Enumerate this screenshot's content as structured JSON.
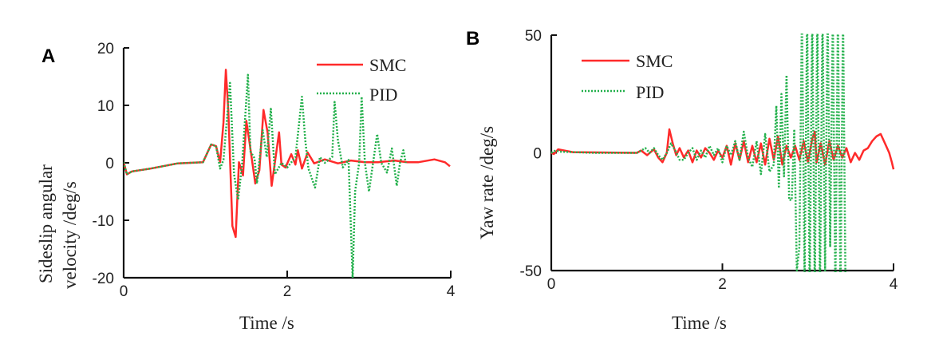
{
  "chart_data": [
    {
      "type": "line",
      "panel_label": "A",
      "title": "",
      "xlabel": "Time /s",
      "ylabel_lines": [
        "Sideslip angular",
        "velocity /deg/s"
      ],
      "xlim": [
        0,
        4
      ],
      "ylim": [
        -20,
        20
      ],
      "xticks": [
        "0",
        "2",
        "4"
      ],
      "yticks": [
        "20",
        "10",
        "0",
        "-10",
        "-20"
      ],
      "xtick_values": [
        0,
        2,
        4
      ],
      "ytick_values": [
        20,
        10,
        0,
        -10,
        -20
      ],
      "legend_position": "top-right",
      "series": [
        {
          "name": "SMC",
          "color": "#ff2a2a",
          "style": "solid",
          "x": [
            0,
            0.04,
            0.1,
            0.33,
            0.66,
            0.97,
            1.07,
            1.13,
            1.18,
            1.22,
            1.25,
            1.28,
            1.33,
            1.37,
            1.41,
            1.46,
            1.5,
            1.54,
            1.61,
            1.66,
            1.71,
            1.76,
            1.81,
            1.9,
            1.93,
            1.98,
            2.05,
            2.1,
            2.13,
            2.18,
            2.25,
            2.33,
            2.46,
            2.62,
            2.78,
            2.95,
            3.11,
            3.31,
            3.47,
            3.6,
            3.8,
            3.93,
            3.99
          ],
          "y": [
            0.1,
            -2,
            -1.5,
            -1,
            -0.1,
            0.1,
            3.2,
            2.9,
            0.1,
            7,
            16.2,
            9,
            -11,
            -12.9,
            0.1,
            -2.2,
            7.3,
            3.4,
            -3.6,
            -1.3,
            9.2,
            5.3,
            -4,
            5.3,
            -0.3,
            -0.8,
            1.5,
            -0.3,
            2.2,
            -1,
            1.8,
            -0.1,
            0.6,
            -0.1,
            0.4,
            0.1,
            0.1,
            0.4,
            0.1,
            0.1,
            0.6,
            0.1,
            -0.6
          ]
        },
        {
          "name": "PID",
          "color": "#22b04b",
          "style": "dotted",
          "x": [
            0,
            0.04,
            0.1,
            0.33,
            0.66,
            0.97,
            1.07,
            1.13,
            1.18,
            1.22,
            1.3,
            1.35,
            1.4,
            1.45,
            1.52,
            1.55,
            1.6,
            1.63,
            1.7,
            1.75,
            1.8,
            1.85,
            1.93,
            2.0,
            2.1,
            2.18,
            2.22,
            2.26,
            2.34,
            2.4,
            2.46,
            2.55,
            2.58,
            2.62,
            2.68,
            2.75,
            2.8,
            2.83,
            2.88,
            2.91,
            2.95,
            3.0,
            3.05,
            3.1,
            3.15,
            3.22,
            3.28,
            3.34,
            3.38,
            3.42,
            3.45
          ],
          "y": [
            0.1,
            -2,
            -1.5,
            -1,
            -0.1,
            0.1,
            3.2,
            2.9,
            -1,
            0.5,
            13.9,
            -2,
            -6.4,
            0,
            15.3,
            2,
            0.8,
            -3.6,
            5.7,
            1,
            9.4,
            -2,
            0,
            -0.8,
            1,
            11.5,
            4,
            -1,
            -4.3,
            1,
            0,
            1,
            10.6,
            3.9,
            -0.8,
            0.5,
            -20,
            -5,
            0,
            11.5,
            0,
            -5,
            0,
            5,
            0,
            -1.7,
            2.5,
            -4,
            0,
            2.2,
            0
          ]
        }
      ]
    },
    {
      "type": "line",
      "panel_label": "B",
      "title": "",
      "xlabel": "Time /s",
      "ylabel": "Yaw rate /deg/s",
      "xlim": [
        0,
        4
      ],
      "ylim": [
        -50,
        50
      ],
      "xticks": [
        "0",
        "2",
        "4"
      ],
      "yticks": [
        "50",
        "0",
        "-50"
      ],
      "xtick_values": [
        0,
        2,
        4
      ],
      "ytick_values": [
        50,
        0,
        -50
      ],
      "legend_position": "top-left",
      "series": [
        {
          "name": "SMC",
          "color": "#ff2a2a",
          "style": "solid",
          "x": [
            0,
            0.03,
            0.08,
            0.25,
            1.0,
            1.05,
            1.12,
            1.2,
            1.25,
            1.3,
            1.35,
            1.38,
            1.42,
            1.46,
            1.5,
            1.55,
            1.6,
            1.65,
            1.7,
            1.75,
            1.8,
            1.85,
            1.9,
            1.95,
            2.0,
            2.05,
            2.1,
            2.15,
            2.2,
            2.25,
            2.3,
            2.35,
            2.4,
            2.45,
            2.5,
            2.55,
            2.6,
            2.65,
            2.7,
            2.75,
            2.8,
            2.85,
            2.9,
            2.95,
            3.0,
            3.05,
            3.08,
            3.1,
            3.15,
            3.2,
            3.25,
            3.3,
            3.35,
            3.4,
            3.45,
            3.5,
            3.55,
            3.6,
            3.65,
            3.7,
            3.75,
            3.8,
            3.85,
            3.9,
            3.95,
            3.98,
            4.0
          ],
          "y": [
            0,
            -0.5,
            1.5,
            0.3,
            0,
            1,
            -1,
            1.5,
            -2,
            -4,
            0,
            10,
            4,
            -1,
            2,
            -2,
            1,
            -4,
            1,
            -2,
            2,
            0,
            -3,
            1,
            -2,
            3,
            -5,
            4,
            -3,
            5,
            -4,
            3,
            -4,
            4,
            -5,
            6,
            -3,
            7,
            -5,
            3,
            -2,
            3,
            -3,
            5,
            -4,
            6,
            9,
            -4,
            4,
            -5,
            5,
            -3,
            3,
            -2,
            2,
            -4,
            0,
            -3,
            1,
            2,
            5,
            7,
            8,
            4,
            0,
            -4,
            -7
          ]
        },
        {
          "name": "PID",
          "color": "#22b04b",
          "style": "dotted",
          "x": [
            0,
            0.05,
            0.1,
            0.5,
            1.0,
            1.05,
            1.1,
            1.15,
            1.2,
            1.25,
            1.3,
            1.35,
            1.4,
            1.45,
            1.5,
            1.55,
            1.6,
            1.65,
            1.7,
            1.75,
            1.8,
            1.85,
            1.9,
            1.95,
            2.0,
            2.05,
            2.1,
            2.15,
            2.2,
            2.25,
            2.3,
            2.35,
            2.4,
            2.45,
            2.5,
            2.55,
            2.6,
            2.63,
            2.66,
            2.69,
            2.72,
            2.75,
            2.78,
            2.81,
            2.84,
            2.87,
            2.9,
            2.93,
            2.96,
            2.99,
            3.02,
            3.05,
            3.08,
            3.11,
            3.14,
            3.17,
            3.2,
            3.23,
            3.26,
            3.29,
            3.32,
            3.35,
            3.38,
            3.41,
            3.44
          ],
          "y": [
            0,
            1,
            0.5,
            0,
            0,
            1,
            2,
            0,
            2,
            -1,
            -3,
            0,
            4,
            1,
            -3,
            -3,
            0,
            2,
            -3,
            1,
            -2,
            3,
            -1,
            2,
            -4,
            3,
            -1,
            5,
            -3,
            9,
            -2,
            -6,
            5,
            -9,
            8,
            -8,
            -5,
            20,
            -15,
            25,
            -10,
            33,
            -20,
            -20,
            10,
            -50,
            -40,
            60,
            -55,
            60,
            -60,
            60,
            -60,
            60,
            -60,
            60,
            -50,
            60,
            -40,
            60,
            -60,
            60,
            -60,
            60,
            -60
          ]
        }
      ]
    }
  ]
}
